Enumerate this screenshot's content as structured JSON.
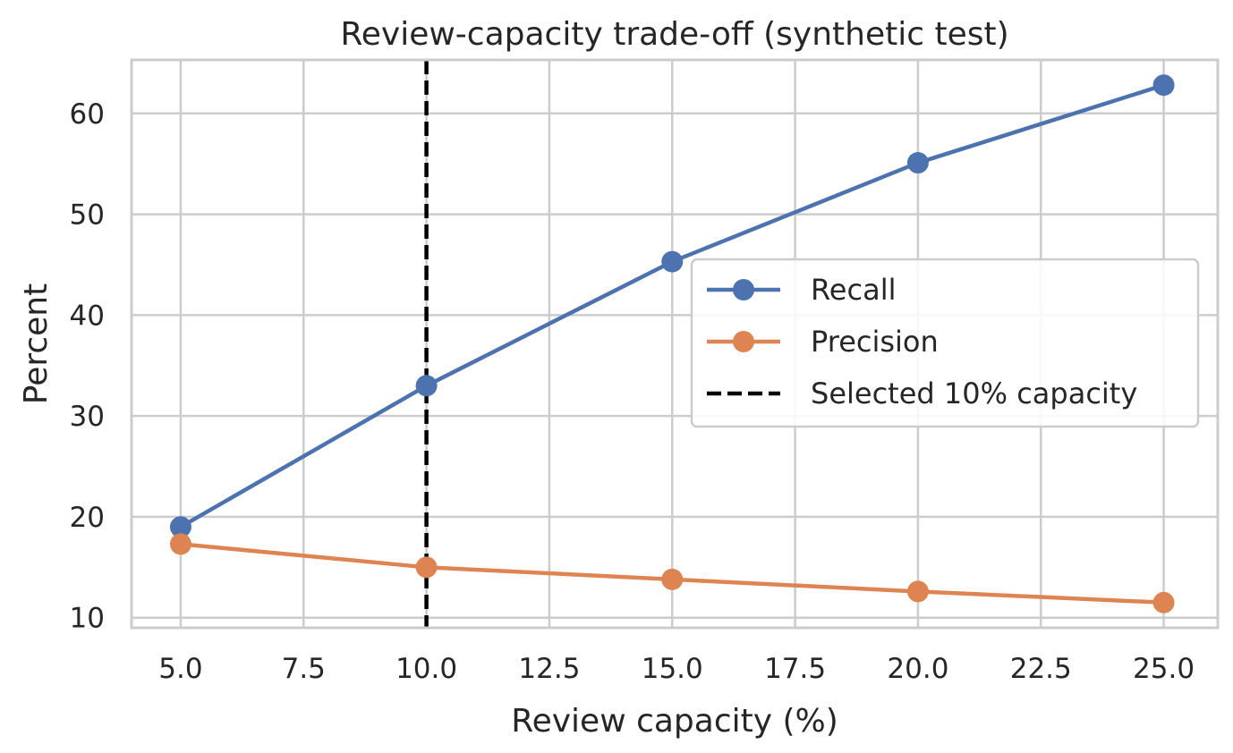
{
  "chart_data": {
    "type": "line",
    "title": "Review-capacity trade-off (synthetic test)",
    "xlabel": "Review capacity (%)",
    "ylabel": "Percent",
    "xlim": [
      4,
      26.1
    ],
    "ylim": [
      9,
      65.3
    ],
    "xticks": [
      5.0,
      7.5,
      10.0,
      12.5,
      15.0,
      17.5,
      20.0,
      22.5,
      25.0
    ],
    "xtick_labels": [
      "5.0",
      "7.5",
      "10.0",
      "12.5",
      "15.0",
      "17.5",
      "20.0",
      "22.5",
      "25.0"
    ],
    "yticks": [
      10,
      20,
      30,
      40,
      50,
      60
    ],
    "ytick_labels": [
      "10",
      "20",
      "30",
      "40",
      "50",
      "60"
    ],
    "grid": true,
    "legend_position": "center-right",
    "x": [
      5,
      10,
      15,
      20,
      25
    ],
    "series": [
      {
        "name": "Recall",
        "values": [
          19.0,
          33.0,
          45.3,
          55.1,
          62.8
        ],
        "color": "#4c72b0",
        "marker": "circle",
        "linestyle": "solid"
      },
      {
        "name": "Precision",
        "values": [
          17.3,
          15.0,
          13.8,
          12.6,
          11.5
        ],
        "color": "#dd8452",
        "marker": "circle",
        "linestyle": "solid"
      }
    ],
    "reference_lines": [
      {
        "name": "Selected 10% capacity",
        "orientation": "vertical",
        "x": 10,
        "color": "#000000",
        "linestyle": "dashed"
      }
    ]
  }
}
